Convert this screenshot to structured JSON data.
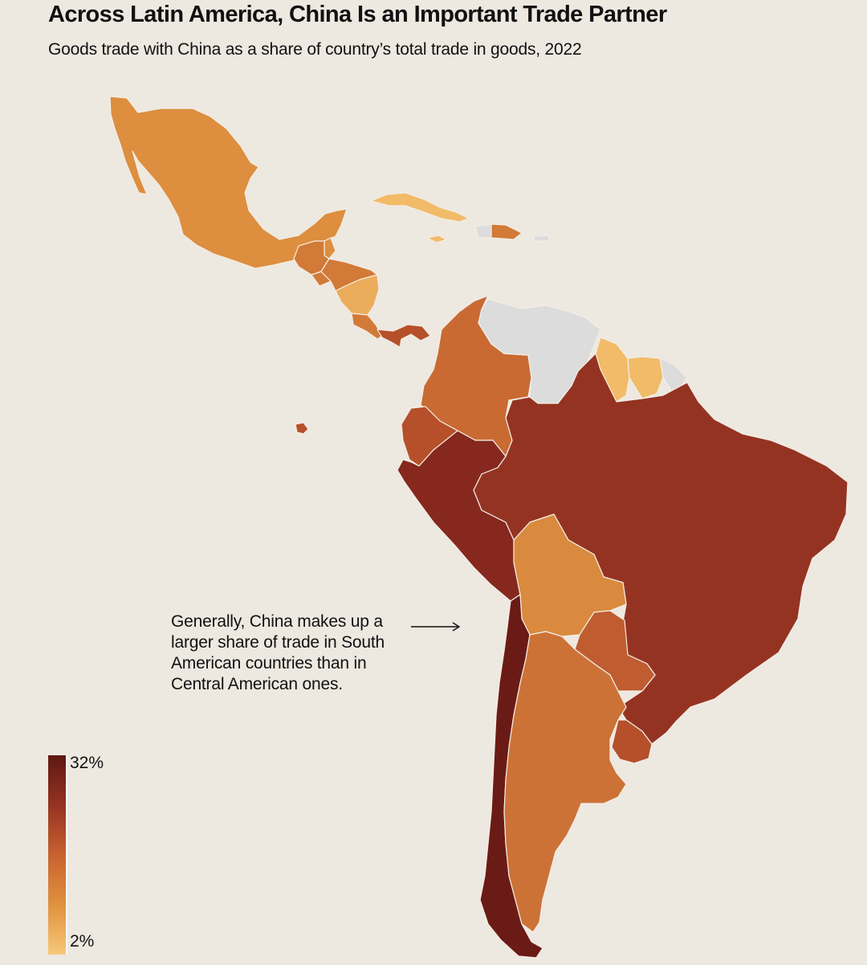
{
  "title": "Across Latin America, China Is an Important Trade Partner",
  "subtitle": "Goods trade with China as a share of country’s total trade in goods, 2022",
  "annotation": "Generally, China makes up a larger share of trade in South American countries than in Central American ones.",
  "legend": {
    "max_label": "32%",
    "min_label": "2%",
    "gradient": [
      "#f7c878",
      "#e0913f",
      "#c7622f",
      "#953322",
      "#5e1812"
    ]
  },
  "colors": {
    "background": "#ede8e0",
    "no_data": "#dcdcdc",
    "land_other": "#e4dfd7"
  },
  "chart_data": {
    "type": "choropleth",
    "scale_range": [
      2,
      32
    ],
    "regions": [
      {
        "name": "Mexico",
        "color": "#dd8e3e"
      },
      {
        "name": "Guatemala",
        "color": "#d27a37"
      },
      {
        "name": "Belize",
        "color": "#dd8e3e"
      },
      {
        "name": "Honduras",
        "color": "#d27a37"
      },
      {
        "name": "El Salvador",
        "color": "#d27a37"
      },
      {
        "name": "Nicaragua",
        "color": "#ebac5c"
      },
      {
        "name": "Costa Rica",
        "color": "#d27a37"
      },
      {
        "name": "Panama",
        "color": "#b5502b"
      },
      {
        "name": "Cuba",
        "color": "#f1bb68"
      },
      {
        "name": "Jamaica",
        "color": "#f1bb68"
      },
      {
        "name": "Haiti",
        "color": "#dcdcdc"
      },
      {
        "name": "Dominican Republic",
        "color": "#d27a37"
      },
      {
        "name": "Colombia",
        "color": "#c96a33"
      },
      {
        "name": "Venezuela",
        "color": "#dcdcdc"
      },
      {
        "name": "Guyana",
        "color": "#f1bb68"
      },
      {
        "name": "Suriname",
        "color": "#f1bb68"
      },
      {
        "name": "French Guiana",
        "color": "#dcdcdc"
      },
      {
        "name": "Ecuador",
        "color": "#b5502b"
      },
      {
        "name": "Peru",
        "color": "#86281e"
      },
      {
        "name": "Brazil",
        "color": "#953322"
      },
      {
        "name": "Bolivia",
        "color": "#d98a3e"
      },
      {
        "name": "Paraguay",
        "color": "#bf5d31"
      },
      {
        "name": "Chile",
        "color": "#6b1b15"
      },
      {
        "name": "Argentina",
        "color": "#cd7237"
      },
      {
        "name": "Uruguay",
        "color": "#b5502b"
      }
    ]
  }
}
